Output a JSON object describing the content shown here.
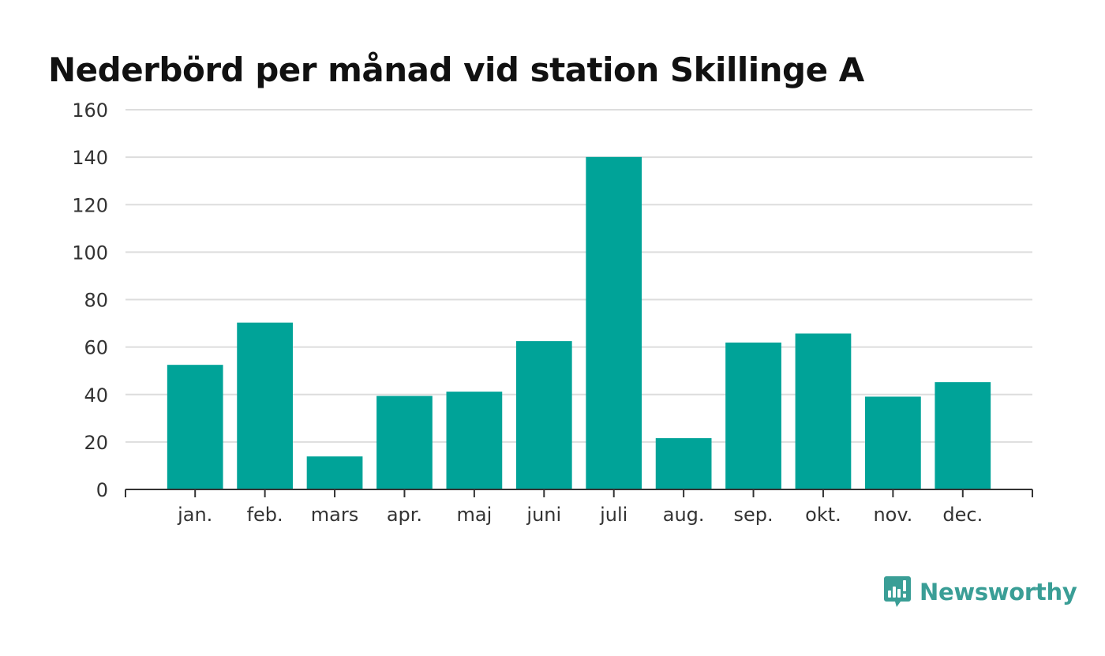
{
  "chart_data": {
    "type": "bar",
    "title": "Nederbörd per månad vid station Skillinge A",
    "xlabel": "",
    "ylabel": "",
    "categories": [
      "jan.",
      "feb.",
      "mars",
      "apr.",
      "maj",
      "juni",
      "juli",
      "aug.",
      "sep.",
      "okt.",
      "nov.",
      "dec."
    ],
    "values": [
      52.5,
      70.3,
      13.9,
      39.4,
      41.2,
      62.5,
      140.1,
      21.6,
      61.9,
      65.7,
      39.1,
      45.2
    ],
    "ylim": [
      0,
      160
    ],
    "yticks": [
      0,
      20,
      40,
      60,
      80,
      100,
      120,
      140,
      160
    ],
    "grid": true,
    "legend": "none",
    "bar_color": "#00a398",
    "grid_color": "#dddddd",
    "axis_color": "#333333"
  },
  "brand": {
    "name": "Newsworthy",
    "icon": "newsworthy-logo-icon",
    "color": "#3a9e96"
  }
}
